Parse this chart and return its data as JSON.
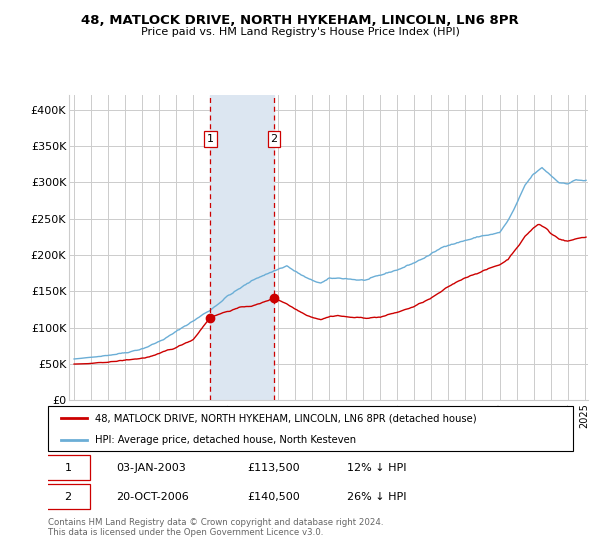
{
  "title": "48, MATLOCK DRIVE, NORTH HYKEHAM, LINCOLN, LN6 8PR",
  "subtitle": "Price paid vs. HM Land Registry's House Price Index (HPI)",
  "red_label": "48, MATLOCK DRIVE, NORTH HYKEHAM, LINCOLN, LN6 8PR (detached house)",
  "blue_label": "HPI: Average price, detached house, North Kesteven",
  "transaction1_date": "03-JAN-2003",
  "transaction1_price": 113500,
  "transaction1_hpi": "12% ↓ HPI",
  "transaction2_date": "20-OCT-2006",
  "transaction2_price": 140500,
  "transaction2_hpi": "26% ↓ HPI",
  "footnote": "Contains HM Land Registry data © Crown copyright and database right 2024.\nThis data is licensed under the Open Government Licence v3.0.",
  "red_color": "#cc0000",
  "blue_color": "#6baed6",
  "shade_color": "#dce6f1",
  "vline_color": "#cc0000",
  "grid_color": "#cccccc",
  "bg_color": "#ffffff",
  "ylim": [
    0,
    420000
  ],
  "yticks": [
    0,
    50000,
    100000,
    150000,
    200000,
    250000,
    300000,
    350000,
    400000
  ],
  "ytick_labels": [
    "£0",
    "£50K",
    "£100K",
    "£150K",
    "£200K",
    "£250K",
    "£300K",
    "£350K",
    "£400K"
  ],
  "t1_x": 2003.0,
  "t2_x": 2006.75,
  "t1_price": 113500,
  "t2_price": 140500,
  "xmin": 1995.0,
  "xmax": 2025.2
}
